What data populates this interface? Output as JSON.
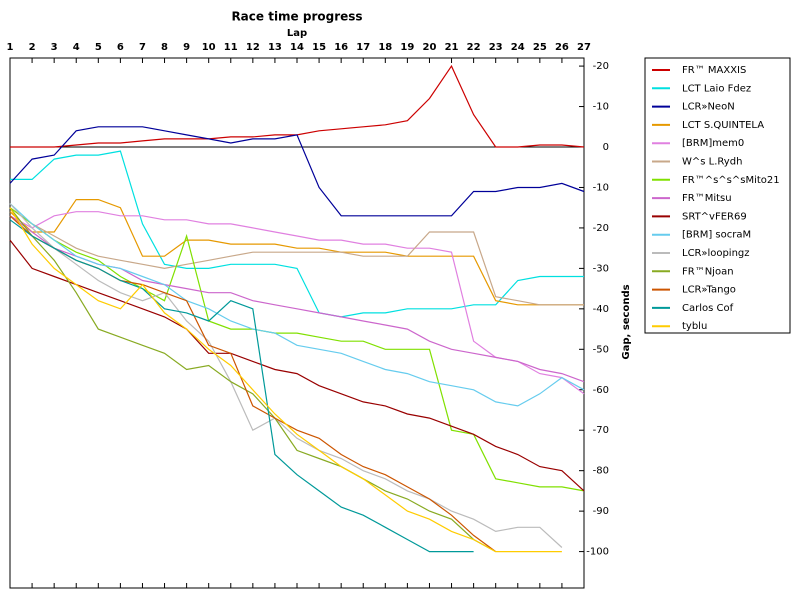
{
  "chart_data": {
    "type": "line",
    "title": "Race time progress",
    "x_label": "Lap",
    "y_label": "Gap, seconds",
    "x": [
      1,
      2,
      3,
      4,
      5,
      6,
      7,
      8,
      9,
      10,
      11,
      12,
      13,
      14,
      15,
      16,
      17,
      18,
      19,
      20,
      21,
      22,
      23,
      24,
      25,
      26,
      27
    ],
    "xlim": [
      1,
      27
    ],
    "xticks": [
      1,
      2,
      3,
      4,
      5,
      6,
      7,
      8,
      9,
      10,
      11,
      12,
      13,
      14,
      15,
      16,
      17,
      18,
      19,
      20,
      21,
      22,
      23,
      24,
      25,
      26,
      27
    ],
    "ylim": [
      -22,
      109
    ],
    "y_inverted": true,
    "zero_line": true,
    "legend": "right",
    "yticks": [
      -20,
      -10,
      0,
      {
        "value": 10,
        "label": "-10"
      },
      {
        "value": 20,
        "label": "-20"
      },
      {
        "value": 30,
        "label": "-30"
      },
      {
        "value": 40,
        "label": "-40"
      },
      {
        "value": 50,
        "label": "-50"
      },
      {
        "value": 60,
        "label": "-60"
      },
      {
        "value": 70,
        "label": "-70"
      },
      {
        "value": 80,
        "label": "-80"
      },
      {
        "value": 90,
        "label": "-90"
      },
      {
        "value": 100,
        "label": "-100"
      }
    ],
    "series": [
      {
        "name": "FR™ MAXXIS",
        "color": "#cc0000",
        "values": [
          0,
          0,
          0,
          -0.5,
          -1,
          -1,
          -1.5,
          -2,
          -2,
          -2,
          -2.5,
          -2.5,
          -3,
          -3,
          -4,
          -4.5,
          -5,
          -5.5,
          -6.5,
          -12,
          -20,
          -8,
          0,
          0,
          -0.5,
          -0.5,
          0
        ]
      },
      {
        "name": "LCT Laio Fdez",
        "color": "#00e0e0",
        "values": [
          8,
          8,
          3,
          2,
          2,
          1,
          19,
          29,
          30,
          30,
          29,
          29,
          29,
          30,
          41,
          42,
          41,
          41,
          40,
          40,
          40,
          39,
          39,
          33,
          32,
          32,
          32
        ]
      },
      {
        "name": "LCR»NeoN",
        "color": "#000099",
        "values": [
          9,
          3,
          2,
          -4,
          -5,
          -5,
          -5,
          -4,
          -3,
          -2,
          -1,
          -2,
          -2,
          -3,
          10,
          17,
          17,
          17,
          17,
          17,
          17,
          11,
          11,
          10,
          10,
          9,
          11
        ]
      },
      {
        "name": "LCT S.QUINTELA",
        "color": "#e69900",
        "values": [
          16,
          21,
          21,
          13,
          13,
          15,
          27,
          27,
          23,
          23,
          24,
          24,
          24,
          25,
          25,
          26,
          26,
          26,
          27,
          27,
          27,
          27,
          38,
          39,
          39,
          39,
          39
        ]
      },
      {
        "name": "[BRM]mem0",
        "color": "#e080e0",
        "values": [
          17,
          20,
          17,
          16,
          16,
          17,
          17,
          18,
          18,
          19,
          19,
          20,
          21,
          22,
          23,
          23,
          24,
          24,
          25,
          25,
          26,
          48,
          52,
          53,
          56,
          57,
          61
        ]
      },
      {
        "name": "W^s L.Rydh",
        "color": "#c8a88a",
        "values": [
          15,
          19,
          22,
          25,
          27,
          28,
          29,
          30,
          29,
          28,
          27,
          26,
          26,
          26,
          26,
          26,
          27,
          27,
          27,
          21,
          21,
          21,
          37,
          38,
          39,
          39,
          39
        ]
      },
      {
        "name": "FR™^s^s^sMito21",
        "color": "#80e000",
        "values": [
          15,
          19,
          23,
          26,
          28,
          32,
          35,
          38,
          22,
          43,
          45,
          45,
          46,
          46,
          47,
          48,
          48,
          50,
          50,
          50,
          70,
          71,
          82,
          83,
          84,
          84,
          85
        ]
      },
      {
        "name": "FR™Mitsu",
        "color": "#cc66cc",
        "values": [
          17,
          21,
          25,
          27,
          29,
          30,
          33,
          34,
          35,
          36,
          36,
          38,
          39,
          40,
          41,
          42,
          43,
          44,
          45,
          48,
          50,
          51,
          52,
          53,
          55,
          56,
          58
        ]
      },
      {
        "name": "SRT^vFER69",
        "color": "#990000",
        "values": [
          23,
          30,
          32,
          34,
          36,
          38,
          40,
          42,
          45,
          51,
          51,
          53,
          55,
          56,
          59,
          61,
          63,
          64,
          66,
          67,
          69,
          71,
          74,
          76,
          79,
          80,
          85
        ]
      },
      {
        "name": "[BRM] socraM",
        "color": "#66ccee",
        "values": [
          14,
          19,
          23,
          27,
          29,
          30,
          32,
          34,
          38,
          40,
          43,
          45,
          46,
          49,
          50,
          51,
          53,
          55,
          56,
          58,
          59,
          60,
          63,
          64,
          61,
          57,
          60
        ]
      },
      {
        "name": "LCR»loopingz",
        "color": "#bbbbbb",
        "values": [
          14,
          20,
          25,
          29,
          33,
          36,
          38,
          36,
          43,
          48,
          58,
          70,
          67,
          72,
          75,
          77,
          80,
          82,
          85,
          87,
          90,
          92,
          95,
          94,
          94,
          99,
          null
        ]
      },
      {
        "name": "FR™Njoan",
        "color": "#88aa22",
        "values": [
          15,
          22,
          28,
          36,
          45,
          47,
          49,
          51,
          55,
          54,
          58,
          61,
          67,
          75,
          77,
          79,
          82,
          85,
          87,
          90,
          92,
          97,
          100,
          null,
          null,
          null,
          null
        ]
      },
      {
        "name": "LCR»Tango",
        "color": "#cc5500",
        "values": [
          17,
          22,
          25,
          28,
          30,
          33,
          34,
          36,
          38,
          49,
          51,
          64,
          67,
          70,
          72,
          76,
          79,
          81,
          84,
          87,
          91,
          96,
          100,
          null,
          null,
          null,
          null
        ]
      },
      {
        "name": "Carlos Cof",
        "color": "#009999",
        "values": [
          18,
          22,
          25,
          28,
          30,
          33,
          35,
          40,
          41,
          43,
          38,
          40,
          76,
          81,
          85,
          89,
          91,
          94,
          97,
          100,
          100,
          100,
          null,
          null,
          null,
          null,
          null
        ]
      },
      {
        "name": "tyblu",
        "color": "#ffcc00",
        "values": [
          15,
          24,
          30,
          34,
          38,
          40,
          34,
          41,
          45,
          50,
          54,
          60,
          66,
          71,
          75,
          79,
          82,
          86,
          90,
          92,
          95,
          97,
          100,
          100,
          100,
          100,
          null
        ]
      }
    ]
  }
}
